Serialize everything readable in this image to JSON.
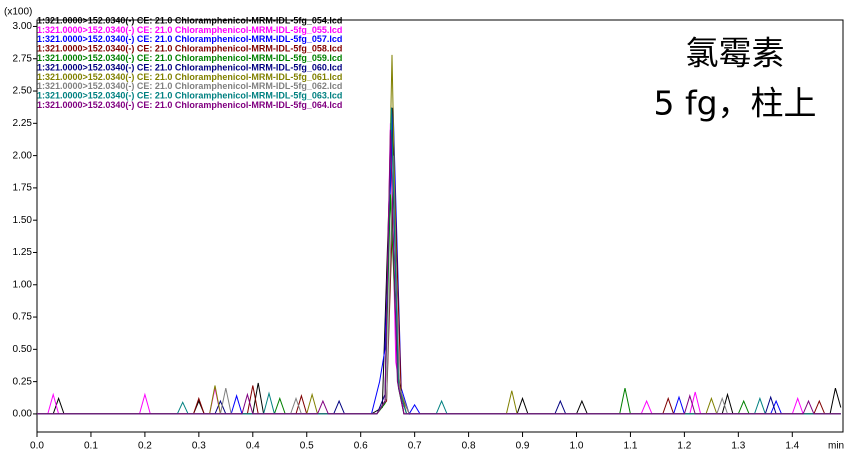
{
  "chart_data": {
    "type": "line",
    "y_unit_label": "(x100)",
    "x_unit_label": "min",
    "annotations": [
      "氯霉素",
      "5 fg，柱上"
    ],
    "xlim": [
      0,
      1.494
    ],
    "ylim": [
      -0.14,
      3.05
    ],
    "xticks": [
      {
        "value": 0,
        "label": "0.0"
      },
      0.1,
      0.2,
      0.3,
      0.4,
      0.5,
      0.6,
      0.7,
      0.8,
      0.9,
      {
        "value": 1,
        "label": "1.0"
      },
      1.1,
      1.2,
      1.3,
      1.4
    ],
    "yticks": [
      {
        "value": 0,
        "label": "0.00"
      },
      {
        "value": 0.25,
        "label": "0.25"
      },
      {
        "value": 0.5,
        "label": "0.50"
      },
      {
        "value": 0.75,
        "label": "0.75"
      },
      {
        "value": 1,
        "label": "1.00"
      },
      {
        "value": 1.25,
        "label": "1.25"
      },
      {
        "value": 1.5,
        "label": "1.50"
      },
      {
        "value": 1.75,
        "label": "1.75"
      },
      {
        "value": 2,
        "label": "2.00"
      },
      {
        "value": 2.25,
        "label": "2.25"
      },
      {
        "value": 2.5,
        "label": "2.50"
      },
      {
        "value": 2.75,
        "label": "2.75"
      },
      {
        "value": 3,
        "label": "3.00"
      }
    ],
    "series": [
      {
        "name": "1:321.0000>152.0340(-) CE: 21.0 Chloramphenicol-MRM-IDL-5fg_054.lcd",
        "color": "#000000",
        "x": [
          0,
          0.03,
          0.04,
          0.05,
          0.29,
          0.3,
          0.31,
          0.4,
          0.41,
          0.42,
          0.62,
          0.64,
          0.658,
          0.67,
          0.68,
          0.89,
          0.9,
          0.91,
          1.0,
          1.01,
          1.02,
          1.27,
          1.28,
          1.29,
          1.47,
          1.48,
          1.49
        ],
        "values": [
          0,
          0,
          0.12,
          0,
          0,
          0.1,
          0,
          0,
          0.24,
          0,
          0,
          0.05,
          2.37,
          0.3,
          0,
          0,
          0.12,
          0,
          0,
          0.1,
          0,
          0,
          0.15,
          0,
          0,
          0.2,
          0.05
        ]
      },
      {
        "name": "1:321.0000>152.0340(-) CE: 21.0 Chloramphenicol-MRM-IDL-5fg_055.lcd",
        "color": "#ff00ff",
        "x": [
          0,
          0.02,
          0.03,
          0.04,
          0.19,
          0.2,
          0.21,
          0.32,
          0.33,
          0.34,
          0.63,
          0.645,
          0.655,
          0.665,
          0.68,
          1.12,
          1.13,
          1.14,
          1.21,
          1.22,
          1.23,
          1.4,
          1.41,
          1.42,
          1.49
        ],
        "values": [
          0,
          0,
          0.15,
          0,
          0,
          0.15,
          0,
          0,
          0.2,
          0,
          0,
          0.1,
          2.25,
          0.4,
          0,
          0,
          0.1,
          0,
          0,
          0.17,
          0,
          0,
          0.12,
          0,
          0
        ]
      },
      {
        "name": "1:321.0000>152.0340(-) CE: 21.0 Chloramphenicol-MRM-IDL-5fg_057.lcd",
        "color": "#0000ff",
        "x": [
          0,
          0.36,
          0.37,
          0.38,
          0.62,
          0.635,
          0.645,
          0.66,
          0.675,
          0.69,
          0.7,
          0.71,
          1.18,
          1.19,
          1.2,
          1.36,
          1.37,
          1.38,
          1.49
        ],
        "values": [
          0,
          0,
          0.14,
          0,
          0,
          0.25,
          0.5,
          2.37,
          0.2,
          0,
          0.07,
          0,
          0,
          0.13,
          0,
          0,
          0.1,
          0,
          0
        ]
      },
      {
        "name": "1:321.0000>152.0340(-) CE: 21.0 Chloramphenicol-MRM-IDL-5fg_058.lcd",
        "color": "#800000",
        "x": [
          0,
          0.29,
          0.3,
          0.31,
          0.39,
          0.4,
          0.41,
          0.48,
          0.49,
          0.5,
          0.63,
          0.648,
          0.662,
          0.675,
          0.69,
          1.16,
          1.17,
          1.18,
          1.44,
          1.45,
          1.46,
          1.49
        ],
        "values": [
          0,
          0,
          0.12,
          0,
          0,
          0.22,
          0,
          0,
          0.14,
          0,
          0,
          0.1,
          1.9,
          0.15,
          0,
          0,
          0.12,
          0,
          0,
          0.1,
          0,
          0
        ]
      },
      {
        "name": "1:321.0000>152.0340(-) CE: 21.0 Chloramphenicol-MRM-IDL-5fg_059.lcd",
        "color": "#008000",
        "x": [
          0,
          0.44,
          0.45,
          0.46,
          0.63,
          0.645,
          0.655,
          0.67,
          0.68,
          1.08,
          1.09,
          1.1,
          1.3,
          1.31,
          1.32,
          1.49
        ],
        "values": [
          0,
          0,
          0.12,
          0,
          0,
          0.08,
          1.7,
          0.2,
          0,
          0,
          0.2,
          0,
          0,
          0.1,
          0,
          0
        ]
      },
      {
        "name": "1:321.0000>152.0340(-) CE: 21.0 Chloramphenicol-MRM-IDL-5fg_060.lcd",
        "color": "#000080",
        "x": [
          0,
          0.33,
          0.34,
          0.35,
          0.55,
          0.56,
          0.57,
          0.63,
          0.645,
          0.657,
          0.67,
          0.685,
          0.96,
          0.97,
          0.98,
          1.35,
          1.36,
          1.37,
          1.49
        ],
        "values": [
          0,
          0,
          0.1,
          0,
          0,
          0.1,
          0,
          0,
          0.15,
          2.37,
          0.2,
          0,
          0,
          0.1,
          0,
          0,
          0.13,
          0,
          0
        ]
      },
      {
        "name": "1:321.0000>152.0340(-) CE: 21.0 Chloramphenicol-MRM-IDL-5fg_061.lcd",
        "color": "#808000",
        "x": [
          0,
          0.32,
          0.33,
          0.34,
          0.5,
          0.51,
          0.52,
          0.63,
          0.645,
          0.658,
          0.67,
          0.685,
          0.87,
          0.88,
          0.89,
          1.24,
          1.25,
          1.26,
          1.49
        ],
        "values": [
          0,
          0,
          0.22,
          0,
          0,
          0.15,
          0,
          0,
          0.1,
          2.78,
          0.25,
          0,
          0,
          0.18,
          0,
          0,
          0.12,
          0,
          0
        ]
      },
      {
        "name": "1:321.0000>152.0340(-) CE: 21.0 Chloramphenicol-MRM-IDL-5fg_062.lcd",
        "color": "#808080",
        "x": [
          0,
          0.34,
          0.35,
          0.36,
          0.47,
          0.48,
          0.49,
          0.63,
          0.648,
          0.66,
          0.672,
          0.69,
          1.26,
          1.27,
          1.28,
          1.49
        ],
        "values": [
          0,
          0,
          0.2,
          0,
          0,
          0.12,
          0,
          0,
          0.12,
          2.0,
          0.2,
          0,
          0,
          0.12,
          0,
          0
        ]
      },
      {
        "name": "1:321.0000>152.0340(-) CE: 21.0 Chloramphenicol-MRM-IDL-5fg_063.lcd",
        "color": "#008080",
        "x": [
          0,
          0.26,
          0.27,
          0.28,
          0.42,
          0.43,
          0.44,
          0.63,
          0.645,
          0.657,
          0.67,
          0.685,
          0.74,
          0.75,
          0.76,
          1.33,
          1.34,
          1.35,
          1.49
        ],
        "values": [
          0,
          0,
          0.09,
          0,
          0,
          0.16,
          0,
          0,
          0.1,
          2.37,
          0.2,
          0,
          0,
          0.1,
          0,
          0,
          0.12,
          0,
          0
        ]
      },
      {
        "name": "1:321.0000>152.0340(-) CE: 21.0 Chloramphenicol-MRM-IDL-5fg_064.lcd",
        "color": "#800080",
        "x": [
          0,
          0.38,
          0.39,
          0.4,
          0.52,
          0.53,
          0.54,
          0.63,
          0.645,
          0.655,
          0.668,
          0.68,
          1.2,
          1.21,
          1.22,
          1.42,
          1.43,
          1.44,
          1.49
        ],
        "values": [
          0,
          0,
          0.15,
          0,
          0,
          0.1,
          0,
          0,
          0.1,
          2.2,
          0.25,
          0,
          0,
          0.14,
          0,
          0,
          0.1,
          0,
          0
        ]
      }
    ]
  }
}
